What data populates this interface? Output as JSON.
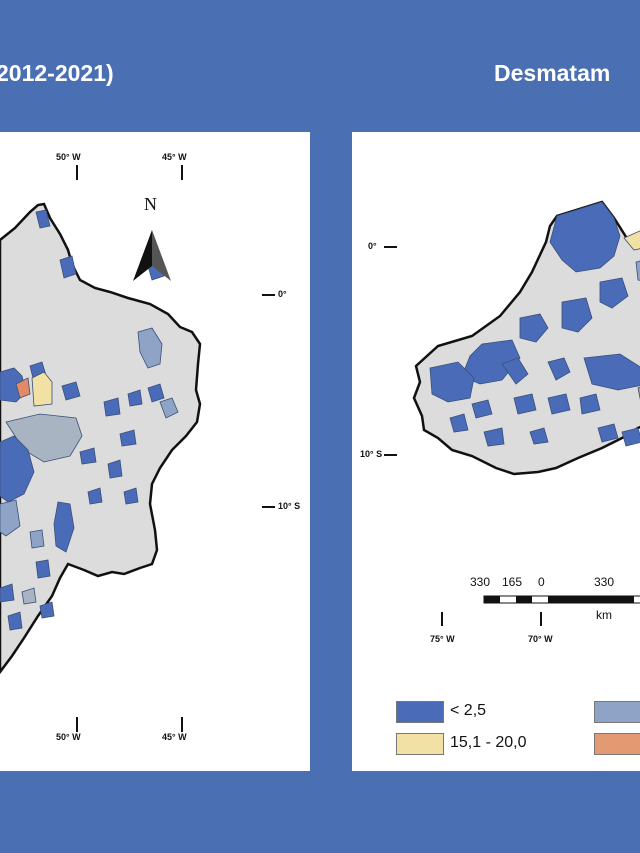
{
  "titles": {
    "left": "2012-2021)",
    "right": "Desmatam"
  },
  "left_map": {
    "top_coords": [
      "50° W",
      "45° W"
    ],
    "bottom_coords": [
      "50° W",
      "45° W"
    ],
    "side_coords": [
      "0°",
      "10° S"
    ],
    "north_label": "N"
  },
  "right_map": {
    "side_coords": [
      "0°",
      "10° S"
    ],
    "bottom_coords": [
      "75° W",
      "70° W"
    ],
    "scale": {
      "labels": [
        "330",
        "165",
        "0",
        "330"
      ],
      "unit": "km"
    }
  },
  "legend": {
    "items": [
      {
        "label": "< 2,5",
        "color": "#4a6cb8"
      },
      {
        "label": "15,1 - 20,0",
        "color": "#f1e1a4"
      },
      {
        "label": "",
        "color": "#8fa3c6"
      },
      {
        "label": "",
        "color": "#e39a73"
      }
    ]
  },
  "colors": {
    "background": "#4a6fb3",
    "land": "#dcdcdc",
    "class_low": "#4a6cb8",
    "class_mid": "#8fa3c6",
    "class_gray": "#a9b4c2",
    "class_yellow": "#f1e1a4",
    "class_orange": "#e08a66"
  }
}
